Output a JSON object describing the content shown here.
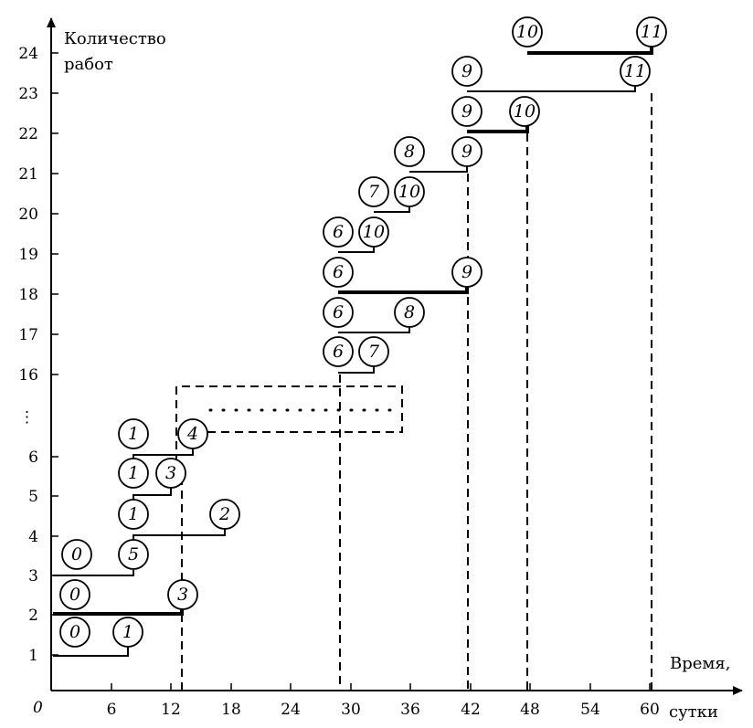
{
  "chart_data": {
    "type": "diagram",
    "ylabel_lines": [
      "Количество",
      "работ"
    ],
    "xlabel_lines": [
      "Время,",
      "сутки"
    ],
    "origin_label": "0",
    "x_ticks": [
      "6",
      "12",
      "18",
      "24",
      "30",
      "36",
      "42",
      "48",
      "54",
      "60"
    ],
    "y_ticks_lower": [
      "1",
      "2",
      "3",
      "4",
      "5",
      "6"
    ],
    "y_break_label": "⋮",
    "y_ticks_upper": [
      "16",
      "17",
      "18",
      "19",
      "20",
      "21",
      "22",
      "23",
      "24"
    ],
    "nodes": [
      {
        "label": "0"
      },
      {
        "label": "1"
      },
      {
        "label": "0"
      },
      {
        "label": "3"
      },
      {
        "label": "0"
      },
      {
        "label": "5"
      },
      {
        "label": "1"
      },
      {
        "label": "2"
      },
      {
        "label": "1"
      },
      {
        "label": "3"
      },
      {
        "label": "1"
      },
      {
        "label": "4"
      },
      {
        "label": "6"
      },
      {
        "label": "7"
      },
      {
        "label": "6"
      },
      {
        "label": "8"
      },
      {
        "label": "6"
      },
      {
        "label": "9"
      },
      {
        "label": "6"
      },
      {
        "label": "10"
      },
      {
        "label": "7"
      },
      {
        "label": "10"
      },
      {
        "label": "8"
      },
      {
        "label": "9"
      },
      {
        "label": "9"
      },
      {
        "label": "10"
      },
      {
        "label": "9"
      },
      {
        "label": "11"
      },
      {
        "label": "10"
      },
      {
        "label": "11"
      }
    ]
  }
}
